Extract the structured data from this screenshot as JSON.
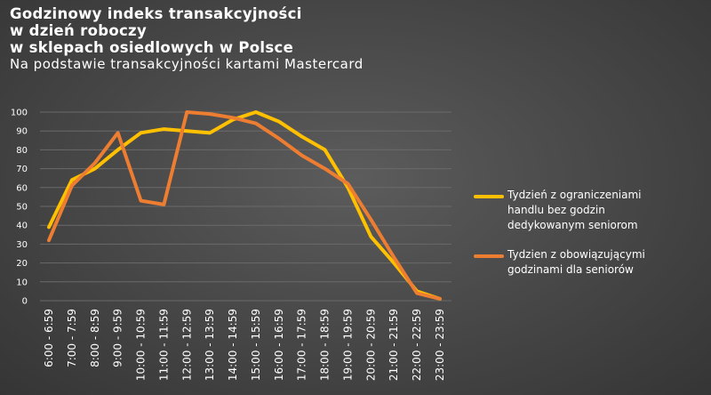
{
  "title_lines": [
    "Godzinowy indeks transakcyjności",
    "w dzień roboczy",
    "w sklepach osiedlowych w Polsce"
  ],
  "subtitle": "Na podstawie transakcyjności kartami Mastercard",
  "colors": {
    "series_1": "#FFC000",
    "series_2": "#ED7D31",
    "gridline": "#6a6a6a",
    "text": "#FFFFFF"
  },
  "chart_data": {
    "type": "line",
    "categories": [
      "6:00 - 6:59",
      "7:00 - 7:59",
      "8:00 - 8:59",
      "9:00 - 9:59",
      "10:00 - 10:59",
      "11:00 - 11:59",
      "12:00 - 12:59",
      "13:00 - 13:59",
      "14:00 - 14:59",
      "15:00 - 15:59",
      "16:00 - 16:59",
      "17:00 - 17:59",
      "18:00 - 18:59",
      "19:00 - 19:59",
      "20:00 - 20:59",
      "21:00 - 21:59",
      "22:00 - 22:59",
      "23:00 - 23:59"
    ],
    "series": [
      {
        "name": "Tydzień z ograniczeniami handlu bez godzin dedykowanym seniorom",
        "values": [
          39,
          64,
          70,
          80,
          89,
          91,
          90,
          89,
          96,
          100,
          95,
          87,
          80,
          60,
          34,
          20,
          5,
          1
        ]
      },
      {
        "name": "Tydzien z obowiązującymi godzinami dla seniorów",
        "values": [
          32,
          61,
          73,
          89,
          53,
          51,
          100,
          99,
          97,
          94,
          86,
          77,
          70,
          62,
          43,
          23,
          4,
          1
        ]
      }
    ],
    "ylim": [
      0,
      100
    ],
    "yticks": [
      0,
      10,
      20,
      30,
      40,
      50,
      60,
      70,
      80,
      90,
      100
    ],
    "grid": true,
    "legend_position": "right"
  }
}
